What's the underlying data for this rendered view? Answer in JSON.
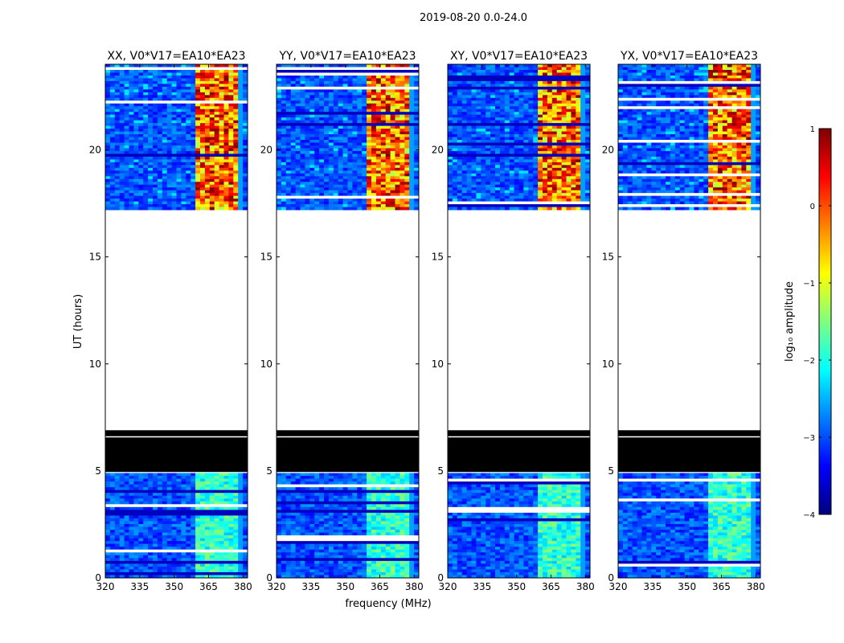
{
  "chart_data": {
    "type": "heatmap",
    "suptitle": "2019-08-20 0.0-24.0",
    "xlabel": "frequency (MHz)",
    "ylabel": "UT (hours)",
    "xlim": [
      320,
      382
    ],
    "ylim": [
      0,
      24
    ],
    "xticks": [
      320,
      335,
      350,
      365,
      380
    ],
    "yticks": [
      0,
      5,
      10,
      15,
      20
    ],
    "panels": [
      {
        "title": "XX, V0*V17=EA10*EA23",
        "pol": "XX"
      },
      {
        "title": "YY, V0*V17=EA10*EA23",
        "pol": "YY"
      },
      {
        "title": "XY, V0*V17=EA10*EA23",
        "pol": "XY"
      },
      {
        "title": "YX, V0*V17=EA10*EA23",
        "pol": "YX"
      }
    ],
    "data_coverage_hours": {
      "no_data": [
        [
          7.0,
          17.2
        ]
      ],
      "flagged_black": [
        [
          4.95,
          6.9
        ]
      ],
      "observed": [
        [
          0.0,
          4.9
        ],
        [
          17.2,
          24.0
        ]
      ]
    },
    "rfi_band_mhz": [
      360,
      379
    ],
    "colorbar": {
      "label": "log₁₀ amplitude",
      "ticks": [
        -4,
        -3,
        -2,
        -1,
        0,
        1
      ],
      "tick_labels": [
        "−4",
        "−3",
        "−2",
        "−1",
        "0",
        "1"
      ],
      "range": [
        -4,
        1
      ],
      "colormap": "jet"
    }
  }
}
